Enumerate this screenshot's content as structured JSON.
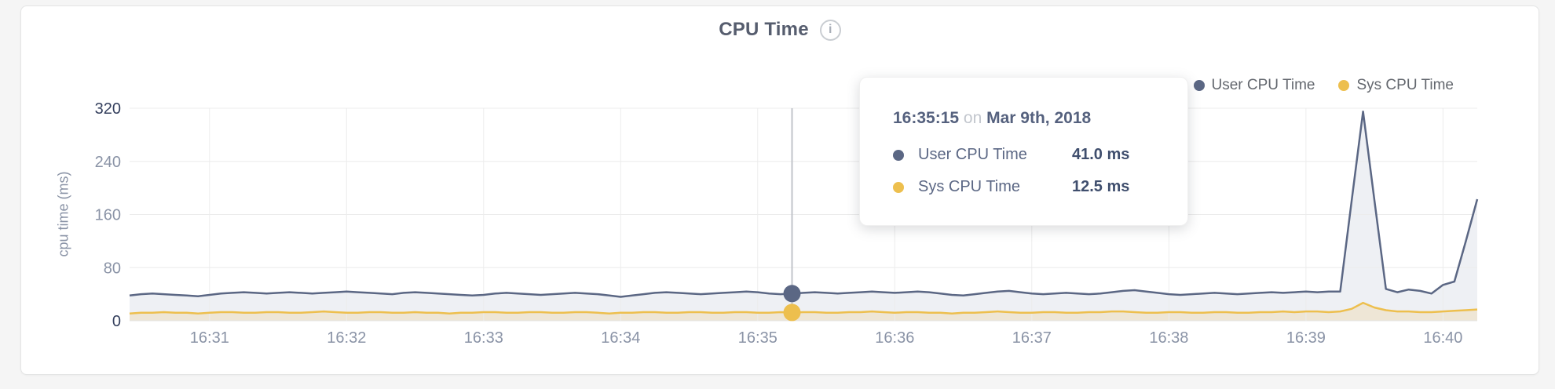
{
  "header": {
    "title": "CPU Time",
    "info_glyph": "i"
  },
  "colors": {
    "user_series": "#5b6784",
    "sys_series": "#edbf4e",
    "user_fill": "#eef0f4",
    "sys_fill": "rgba(237,191,78,0.18)",
    "gridline": "#ececec",
    "baseline": "#e4e4e4",
    "hover_line": "#c1c4ca",
    "tick_label": "#8a93a6",
    "tick_label_dark": "#35405e"
  },
  "legend": {
    "items": [
      {
        "label": "User CPU Time",
        "color": "#5b6784"
      },
      {
        "label": "Sys CPU Time",
        "color": "#edbf4e"
      }
    ]
  },
  "tooltip": {
    "time": "16:35:15",
    "on_word": "on",
    "date": "Mar 9th, 2018",
    "rows": [
      {
        "label": "User CPU Time",
        "value": "41.0 ms",
        "color": "#5b6784"
      },
      {
        "label": "Sys CPU Time",
        "value": "12.5 ms",
        "color": "#edbf4e"
      }
    ]
  },
  "chart_data": {
    "type": "area",
    "title": "CPU Time",
    "xlabel": "",
    "ylabel": "cpu time (ms)",
    "ylim": [
      0,
      320
    ],
    "y_ticks": [
      0,
      80,
      160,
      240,
      320
    ],
    "x_tick_labels": [
      "16:31",
      "16:32",
      "16:33",
      "16:34",
      "16:35",
      "16:36",
      "16:37",
      "16:38",
      "16:39",
      "16:40"
    ],
    "start_time": "16:30:25",
    "end_time": "16:40:15",
    "interval_seconds": 5,
    "grid": true,
    "legend_position": "top-right",
    "hover_time": "16:35:15",
    "series": [
      {
        "name": "User CPU Time",
        "unit": "ms",
        "values": [
          38,
          40,
          41,
          40,
          39,
          38,
          37,
          39,
          41,
          42,
          43,
          42,
          41,
          42,
          43,
          42,
          41,
          42,
          43,
          44,
          43,
          42,
          41,
          40,
          42,
          43,
          42,
          41,
          40,
          39,
          38,
          39,
          41,
          42,
          41,
          40,
          39,
          40,
          41,
          42,
          41,
          40,
          38,
          36,
          38,
          40,
          42,
          43,
          42,
          41,
          40,
          41,
          42,
          43,
          44,
          43,
          41,
          40,
          41,
          42,
          43,
          42,
          41,
          42,
          43,
          44,
          43,
          42,
          43,
          44,
          43,
          41,
          39,
          38,
          40,
          42,
          44,
          45,
          43,
          41,
          40,
          41,
          42,
          41,
          40,
          41,
          43,
          45,
          46,
          44,
          42,
          40,
          39,
          40,
          41,
          42,
          41,
          40,
          41,
          42,
          43,
          42,
          43,
          44,
          43,
          44,
          44,
          180,
          315,
          181,
          48,
          43,
          47,
          45,
          41,
          54,
          59,
          120,
          183
        ]
      },
      {
        "name": "Sys CPU Time",
        "unit": "ms",
        "values": [
          11,
          12,
          12,
          13,
          12,
          12,
          11,
          12,
          13,
          13,
          12,
          12,
          13,
          13,
          12,
          12,
          13,
          14,
          13,
          12,
          12,
          13,
          13,
          12,
          12,
          13,
          12,
          12,
          11,
          12,
          12,
          13,
          13,
          12,
          12,
          13,
          13,
          12,
          12,
          13,
          13,
          12,
          11,
          12,
          12,
          13,
          13,
          12,
          12,
          13,
          13,
          12,
          12,
          13,
          13,
          12,
          12,
          13,
          12.5,
          13,
          13,
          12,
          12,
          13,
          13,
          14,
          13,
          12,
          13,
          13,
          12,
          12,
          11,
          12,
          12,
          13,
          14,
          13,
          12,
          12,
          13,
          13,
          12,
          12,
          13,
          13,
          14,
          14,
          13,
          12,
          12,
          13,
          13,
          12,
          12,
          13,
          13,
          12,
          12,
          13,
          13,
          14,
          13,
          14,
          14,
          13,
          14,
          18,
          27,
          20,
          16,
          14,
          14,
          13,
          13,
          14,
          15,
          16,
          17
        ]
      }
    ]
  }
}
